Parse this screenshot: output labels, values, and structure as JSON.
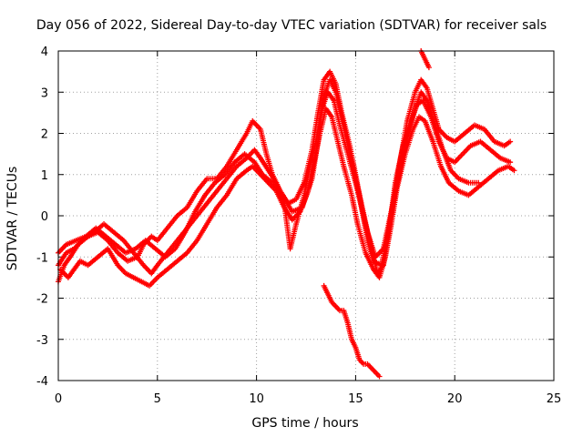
{
  "chart_data": {
    "type": "scatter",
    "title": "Day 056 of 2022, Sidereal Day-to-day VTEC variation (SDTVAR) for receiver sals",
    "xlabel": "GPS time / hours",
    "ylabel": "SDTVAR / TECUs",
    "xlim": [
      0,
      25
    ],
    "ylim": [
      -4,
      4
    ],
    "x_ticks": [
      "0",
      "5",
      "10",
      "15",
      "20",
      "25"
    ],
    "y_ticks": [
      "4",
      "3",
      "2",
      "1",
      "0",
      "-1",
      "-2",
      "-3",
      "-4"
    ],
    "grid": true,
    "marker": "+",
    "color": "#ff0000",
    "series": [
      {
        "name": "track-1",
        "points": [
          [
            0.0,
            -1.6
          ],
          [
            0.3,
            -1.2
          ],
          [
            0.6,
            -1.0
          ],
          [
            1.0,
            -0.7
          ],
          [
            1.5,
            -0.5
          ],
          [
            2.0,
            -0.4
          ],
          [
            2.5,
            -0.6
          ],
          [
            3.0,
            -0.9
          ],
          [
            3.5,
            -1.1
          ],
          [
            4.0,
            -1.0
          ],
          [
            4.3,
            -0.7
          ],
          [
            4.7,
            -0.5
          ],
          [
            5.0,
            -0.6
          ],
          [
            5.5,
            -0.3
          ],
          [
            6.0,
            0.0
          ],
          [
            6.5,
            0.2
          ],
          [
            7.0,
            0.6
          ],
          [
            7.5,
            0.9
          ],
          [
            8.0,
            0.9
          ],
          [
            8.5,
            1.2
          ],
          [
            9.0,
            1.6
          ],
          [
            9.5,
            2.0
          ],
          [
            9.8,
            2.3
          ],
          [
            10.2,
            2.1
          ],
          [
            10.5,
            1.5
          ],
          [
            10.8,
            1.0
          ],
          [
            11.2,
            0.6
          ],
          [
            11.6,
            0.3
          ],
          [
            12.0,
            0.4
          ],
          [
            12.4,
            0.8
          ],
          [
            12.8,
            1.6
          ],
          [
            13.1,
            2.5
          ],
          [
            13.4,
            3.3
          ],
          [
            13.7,
            3.5
          ],
          [
            14.0,
            3.2
          ],
          [
            14.3,
            2.5
          ],
          [
            14.7,
            1.7
          ],
          [
            15.0,
            1.0
          ],
          [
            15.3,
            0.2
          ],
          [
            15.6,
            -0.6
          ],
          [
            15.9,
            -1.1
          ],
          [
            16.3,
            -1.2
          ],
          [
            16.6,
            -0.5
          ],
          [
            16.9,
            0.3
          ],
          [
            17.2,
            1.2
          ],
          [
            17.6,
            2.3
          ],
          [
            18.0,
            3.0
          ],
          [
            18.3,
            3.3
          ],
          [
            18.6,
            3.1
          ],
          [
            18.9,
            2.6
          ],
          [
            19.2,
            2.1
          ],
          [
            19.6,
            1.9
          ],
          [
            20.0,
            1.8
          ],
          [
            20.5,
            2.0
          ],
          [
            21.0,
            2.2
          ],
          [
            21.5,
            2.1
          ],
          [
            22.0,
            1.8
          ],
          [
            22.5,
            1.7
          ],
          [
            22.8,
            1.8
          ]
        ]
      },
      {
        "name": "track-2",
        "points": [
          [
            0.0,
            -1.2
          ],
          [
            0.4,
            -0.9
          ],
          [
            0.8,
            -0.8
          ],
          [
            1.2,
            -0.6
          ],
          [
            1.8,
            -0.4
          ],
          [
            2.3,
            -0.2
          ],
          [
            2.8,
            -0.4
          ],
          [
            3.3,
            -0.6
          ],
          [
            3.8,
            -0.9
          ],
          [
            4.3,
            -1.2
          ],
          [
            4.7,
            -1.4
          ],
          [
            5.0,
            -1.2
          ],
          [
            5.5,
            -0.9
          ],
          [
            6.0,
            -0.6
          ],
          [
            6.5,
            -0.3
          ],
          [
            7.0,
            0.0
          ],
          [
            7.5,
            0.3
          ],
          [
            8.0,
            0.6
          ],
          [
            8.5,
            0.9
          ],
          [
            9.0,
            1.2
          ],
          [
            9.5,
            1.4
          ],
          [
            9.9,
            1.6
          ],
          [
            10.2,
            1.4
          ],
          [
            10.6,
            1.1
          ],
          [
            11.0,
            0.8
          ],
          [
            11.4,
            0.3
          ],
          [
            11.7,
            -0.8
          ],
          [
            12.0,
            -0.2
          ],
          [
            12.4,
            0.5
          ],
          [
            12.7,
            1.2
          ],
          [
            13.0,
            1.8
          ],
          [
            13.3,
            2.6
          ],
          [
            13.6,
            3.0
          ],
          [
            13.9,
            2.8
          ],
          [
            14.2,
            2.2
          ],
          [
            14.6,
            1.5
          ],
          [
            15.0,
            0.8
          ],
          [
            15.4,
            0.0
          ],
          [
            15.8,
            -0.8
          ],
          [
            16.1,
            -1.4
          ],
          [
            16.4,
            -1.2
          ],
          [
            16.7,
            -0.3
          ],
          [
            17.0,
            0.8
          ],
          [
            17.4,
            1.7
          ],
          [
            17.8,
            2.3
          ],
          [
            18.1,
            2.7
          ],
          [
            18.4,
            2.8
          ],
          [
            18.8,
            2.4
          ],
          [
            19.2,
            1.8
          ],
          [
            19.6,
            1.4
          ],
          [
            20.0,
            1.3
          ],
          [
            20.4,
            1.5
          ],
          [
            20.8,
            1.7
          ],
          [
            21.3,
            1.8
          ],
          [
            21.8,
            1.6
          ],
          [
            22.3,
            1.4
          ],
          [
            22.8,
            1.3
          ]
        ]
      },
      {
        "name": "track-3",
        "points": [
          [
            0.1,
            -1.3
          ],
          [
            0.5,
            -1.5
          ],
          [
            0.8,
            -1.3
          ],
          [
            1.1,
            -1.1
          ],
          [
            1.5,
            -1.2
          ],
          [
            2.0,
            -1.0
          ],
          [
            2.5,
            -0.8
          ],
          [
            3.0,
            -1.2
          ],
          [
            3.4,
            -1.4
          ],
          [
            3.8,
            -1.5
          ],
          [
            4.2,
            -1.6
          ],
          [
            4.6,
            -1.7
          ],
          [
            5.0,
            -1.5
          ],
          [
            5.5,
            -1.3
          ],
          [
            6.0,
            -1.1
          ],
          [
            6.5,
            -0.9
          ],
          [
            7.0,
            -0.6
          ],
          [
            7.5,
            -0.2
          ],
          [
            8.0,
            0.2
          ],
          [
            8.5,
            0.5
          ],
          [
            9.0,
            0.9
          ],
          [
            9.5,
            1.1
          ],
          [
            9.8,
            1.2
          ],
          [
            10.2,
            1.0
          ],
          [
            10.6,
            0.8
          ],
          [
            11.0,
            0.6
          ],
          [
            11.4,
            0.2
          ],
          [
            11.8,
            -0.1
          ],
          [
            12.2,
            0.1
          ],
          [
            12.6,
            0.6
          ],
          [
            12.9,
            1.3
          ],
          [
            13.2,
            2.0
          ],
          [
            13.5,
            2.6
          ],
          [
            13.8,
            2.4
          ],
          [
            14.1,
            1.8
          ],
          [
            14.4,
            1.2
          ],
          [
            14.8,
            0.5
          ],
          [
            15.1,
            -0.2
          ],
          [
            15.5,
            -0.9
          ],
          [
            15.9,
            -1.3
          ],
          [
            16.2,
            -1.5
          ],
          [
            16.5,
            -1.0
          ],
          [
            16.8,
            -0.2
          ],
          [
            17.1,
            0.7
          ],
          [
            17.5,
            1.5
          ],
          [
            17.9,
            2.1
          ],
          [
            18.2,
            2.4
          ],
          [
            18.5,
            2.3
          ],
          [
            18.9,
            1.8
          ],
          [
            19.3,
            1.2
          ],
          [
            19.7,
            0.8
          ],
          [
            20.2,
            0.6
          ],
          [
            20.7,
            0.5
          ],
          [
            21.2,
            0.7
          ],
          [
            21.7,
            0.9
          ],
          [
            22.2,
            1.1
          ],
          [
            22.7,
            1.2
          ],
          [
            23.0,
            1.1
          ]
        ]
      },
      {
        "name": "track-4",
        "points": [
          [
            0.0,
            -0.9
          ],
          [
            0.4,
            -0.7
          ],
          [
            0.9,
            -0.6
          ],
          [
            1.4,
            -0.5
          ],
          [
            1.9,
            -0.3
          ],
          [
            2.4,
            -0.5
          ],
          [
            2.9,
            -0.7
          ],
          [
            3.4,
            -0.9
          ],
          [
            3.9,
            -0.8
          ],
          [
            4.4,
            -0.6
          ],
          [
            4.9,
            -0.8
          ],
          [
            5.4,
            -1.0
          ],
          [
            5.9,
            -0.8
          ],
          [
            6.4,
            -0.4
          ],
          [
            6.9,
            0.1
          ],
          [
            7.4,
            0.5
          ],
          [
            7.9,
            0.8
          ],
          [
            8.4,
            1.0
          ],
          [
            8.9,
            1.3
          ],
          [
            9.4,
            1.5
          ],
          [
            9.9,
            1.3
          ],
          [
            10.3,
            1.0
          ],
          [
            10.8,
            0.8
          ],
          [
            11.3,
            0.5
          ],
          [
            11.8,
            0.1
          ],
          [
            12.3,
            0.2
          ],
          [
            12.8,
            0.9
          ],
          [
            13.1,
            1.8
          ],
          [
            13.4,
            2.9
          ],
          [
            13.7,
            3.3
          ],
          [
            14.0,
            3.0
          ],
          [
            14.4,
            2.2
          ],
          [
            14.8,
            1.3
          ],
          [
            15.2,
            0.5
          ],
          [
            15.6,
            -0.4
          ],
          [
            16.0,
            -1.0
          ],
          [
            16.4,
            -0.8
          ],
          [
            16.8,
            0.1
          ],
          [
            17.2,
            1.0
          ],
          [
            17.6,
            1.9
          ],
          [
            18.0,
            2.6
          ],
          [
            18.3,
            3.0
          ],
          [
            18.6,
            2.8
          ],
          [
            19.0,
            2.2
          ],
          [
            19.4,
            1.6
          ],
          [
            19.8,
            1.1
          ],
          [
            20.2,
            0.9
          ],
          [
            20.7,
            0.8
          ],
          [
            21.2,
            0.8
          ]
        ]
      },
      {
        "name": "track-5",
        "points": [
          [
            13.4,
            -1.7
          ],
          [
            13.6,
            -1.9
          ],
          [
            13.8,
            -2.1
          ],
          [
            14.0,
            -2.2
          ],
          [
            14.2,
            -2.3
          ],
          [
            14.4,
            -2.3
          ],
          [
            14.6,
            -2.6
          ],
          [
            14.8,
            -3.0
          ],
          [
            15.0,
            -3.2
          ],
          [
            15.2,
            -3.5
          ],
          [
            15.4,
            -3.6
          ],
          [
            15.6,
            -3.6
          ],
          [
            15.8,
            -3.7
          ],
          [
            16.0,
            -3.8
          ],
          [
            16.2,
            -3.9
          ]
        ]
      },
      {
        "name": "track-6",
        "points": [
          [
            18.3,
            4.0
          ],
          [
            18.5,
            3.8
          ],
          [
            18.7,
            3.6
          ]
        ]
      }
    ]
  }
}
